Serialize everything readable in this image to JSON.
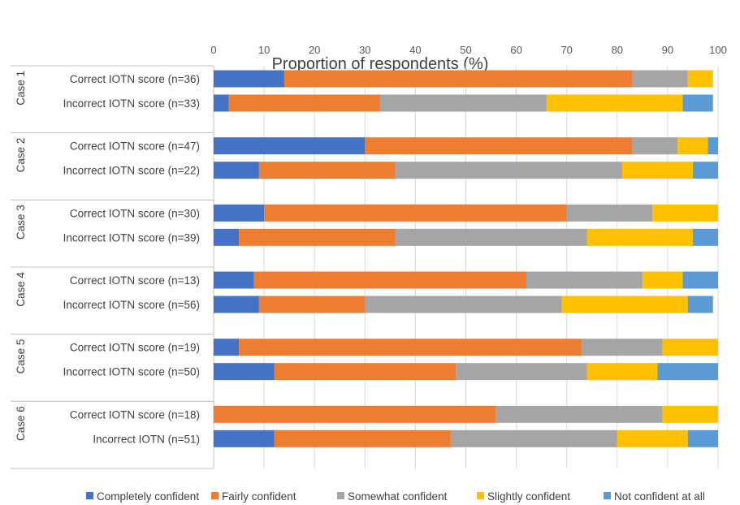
{
  "chart_data": {
    "type": "bar",
    "orientation": "horizontal",
    "stacked": true,
    "title": "Proportion of respondents (%)",
    "xlim": [
      0,
      100
    ],
    "xticks": [
      "0",
      "10",
      "20",
      "30",
      "40",
      "50",
      "60",
      "70",
      "80",
      "90",
      "100"
    ],
    "grid": true,
    "legend_position": "bottom",
    "groups": [
      {
        "label": "Case 1",
        "rows": [
          {
            "label": "Correct IOTN score (n=36)",
            "values": [
              14,
              69,
              11,
              5,
              0
            ]
          },
          {
            "label": "Incorrect IOTN score (n=33)",
            "values": [
              3,
              30,
              33,
              27,
              6
            ]
          }
        ]
      },
      {
        "label": "Case 2",
        "rows": [
          {
            "label": "Correct IOTN score (n=47)",
            "values": [
              30,
              53,
              9,
              6,
              2
            ]
          },
          {
            "label": "Incorrect  IOTN score (n=22)",
            "values": [
              9,
              27,
              45,
              14,
              5
            ]
          }
        ]
      },
      {
        "label": "Case 3",
        "rows": [
          {
            "label": "Correct IOTN score (n=30)",
            "values": [
              10,
              60,
              17,
              13,
              0
            ]
          },
          {
            "label": "Incorrect IOTN score (n=39)",
            "values": [
              5,
              31,
              38,
              21,
              5
            ]
          }
        ]
      },
      {
        "label": "Case 4",
        "rows": [
          {
            "label": "Correct IOTN score (n=13)",
            "values": [
              8,
              54,
              23,
              8,
              7
            ]
          },
          {
            "label": "Incorrect IOTN score (n=56)",
            "values": [
              9,
              21,
              39,
              25,
              5
            ]
          }
        ]
      },
      {
        "label": "Case 5",
        "rows": [
          {
            "label": "Correct IOTN score (n=19)",
            "values": [
              5,
              68,
              16,
              11,
              0
            ]
          },
          {
            "label": "Incorrect IOTN score (n=50)",
            "values": [
              12,
              36,
              26,
              14,
              12
            ]
          }
        ]
      },
      {
        "label": "Case 6",
        "rows": [
          {
            "label": "Correct IOTN score (n=18)",
            "values": [
              0,
              56,
              33,
              11,
              0
            ]
          },
          {
            "label": "Incorrect IOTN (n=51)",
            "values": [
              12,
              35,
              33,
              14,
              6
            ]
          }
        ]
      }
    ],
    "series": [
      {
        "name": "Completely confident",
        "color": "#4472c4"
      },
      {
        "name": "Fairly confident",
        "color": "#ed7d31"
      },
      {
        "name": "Somewhat confident",
        "color": "#a5a5a5"
      },
      {
        "name": "Slightly confident",
        "color": "#ffc000"
      },
      {
        "name": "Not confident at all",
        "color": "#5b9bd5"
      }
    ]
  }
}
